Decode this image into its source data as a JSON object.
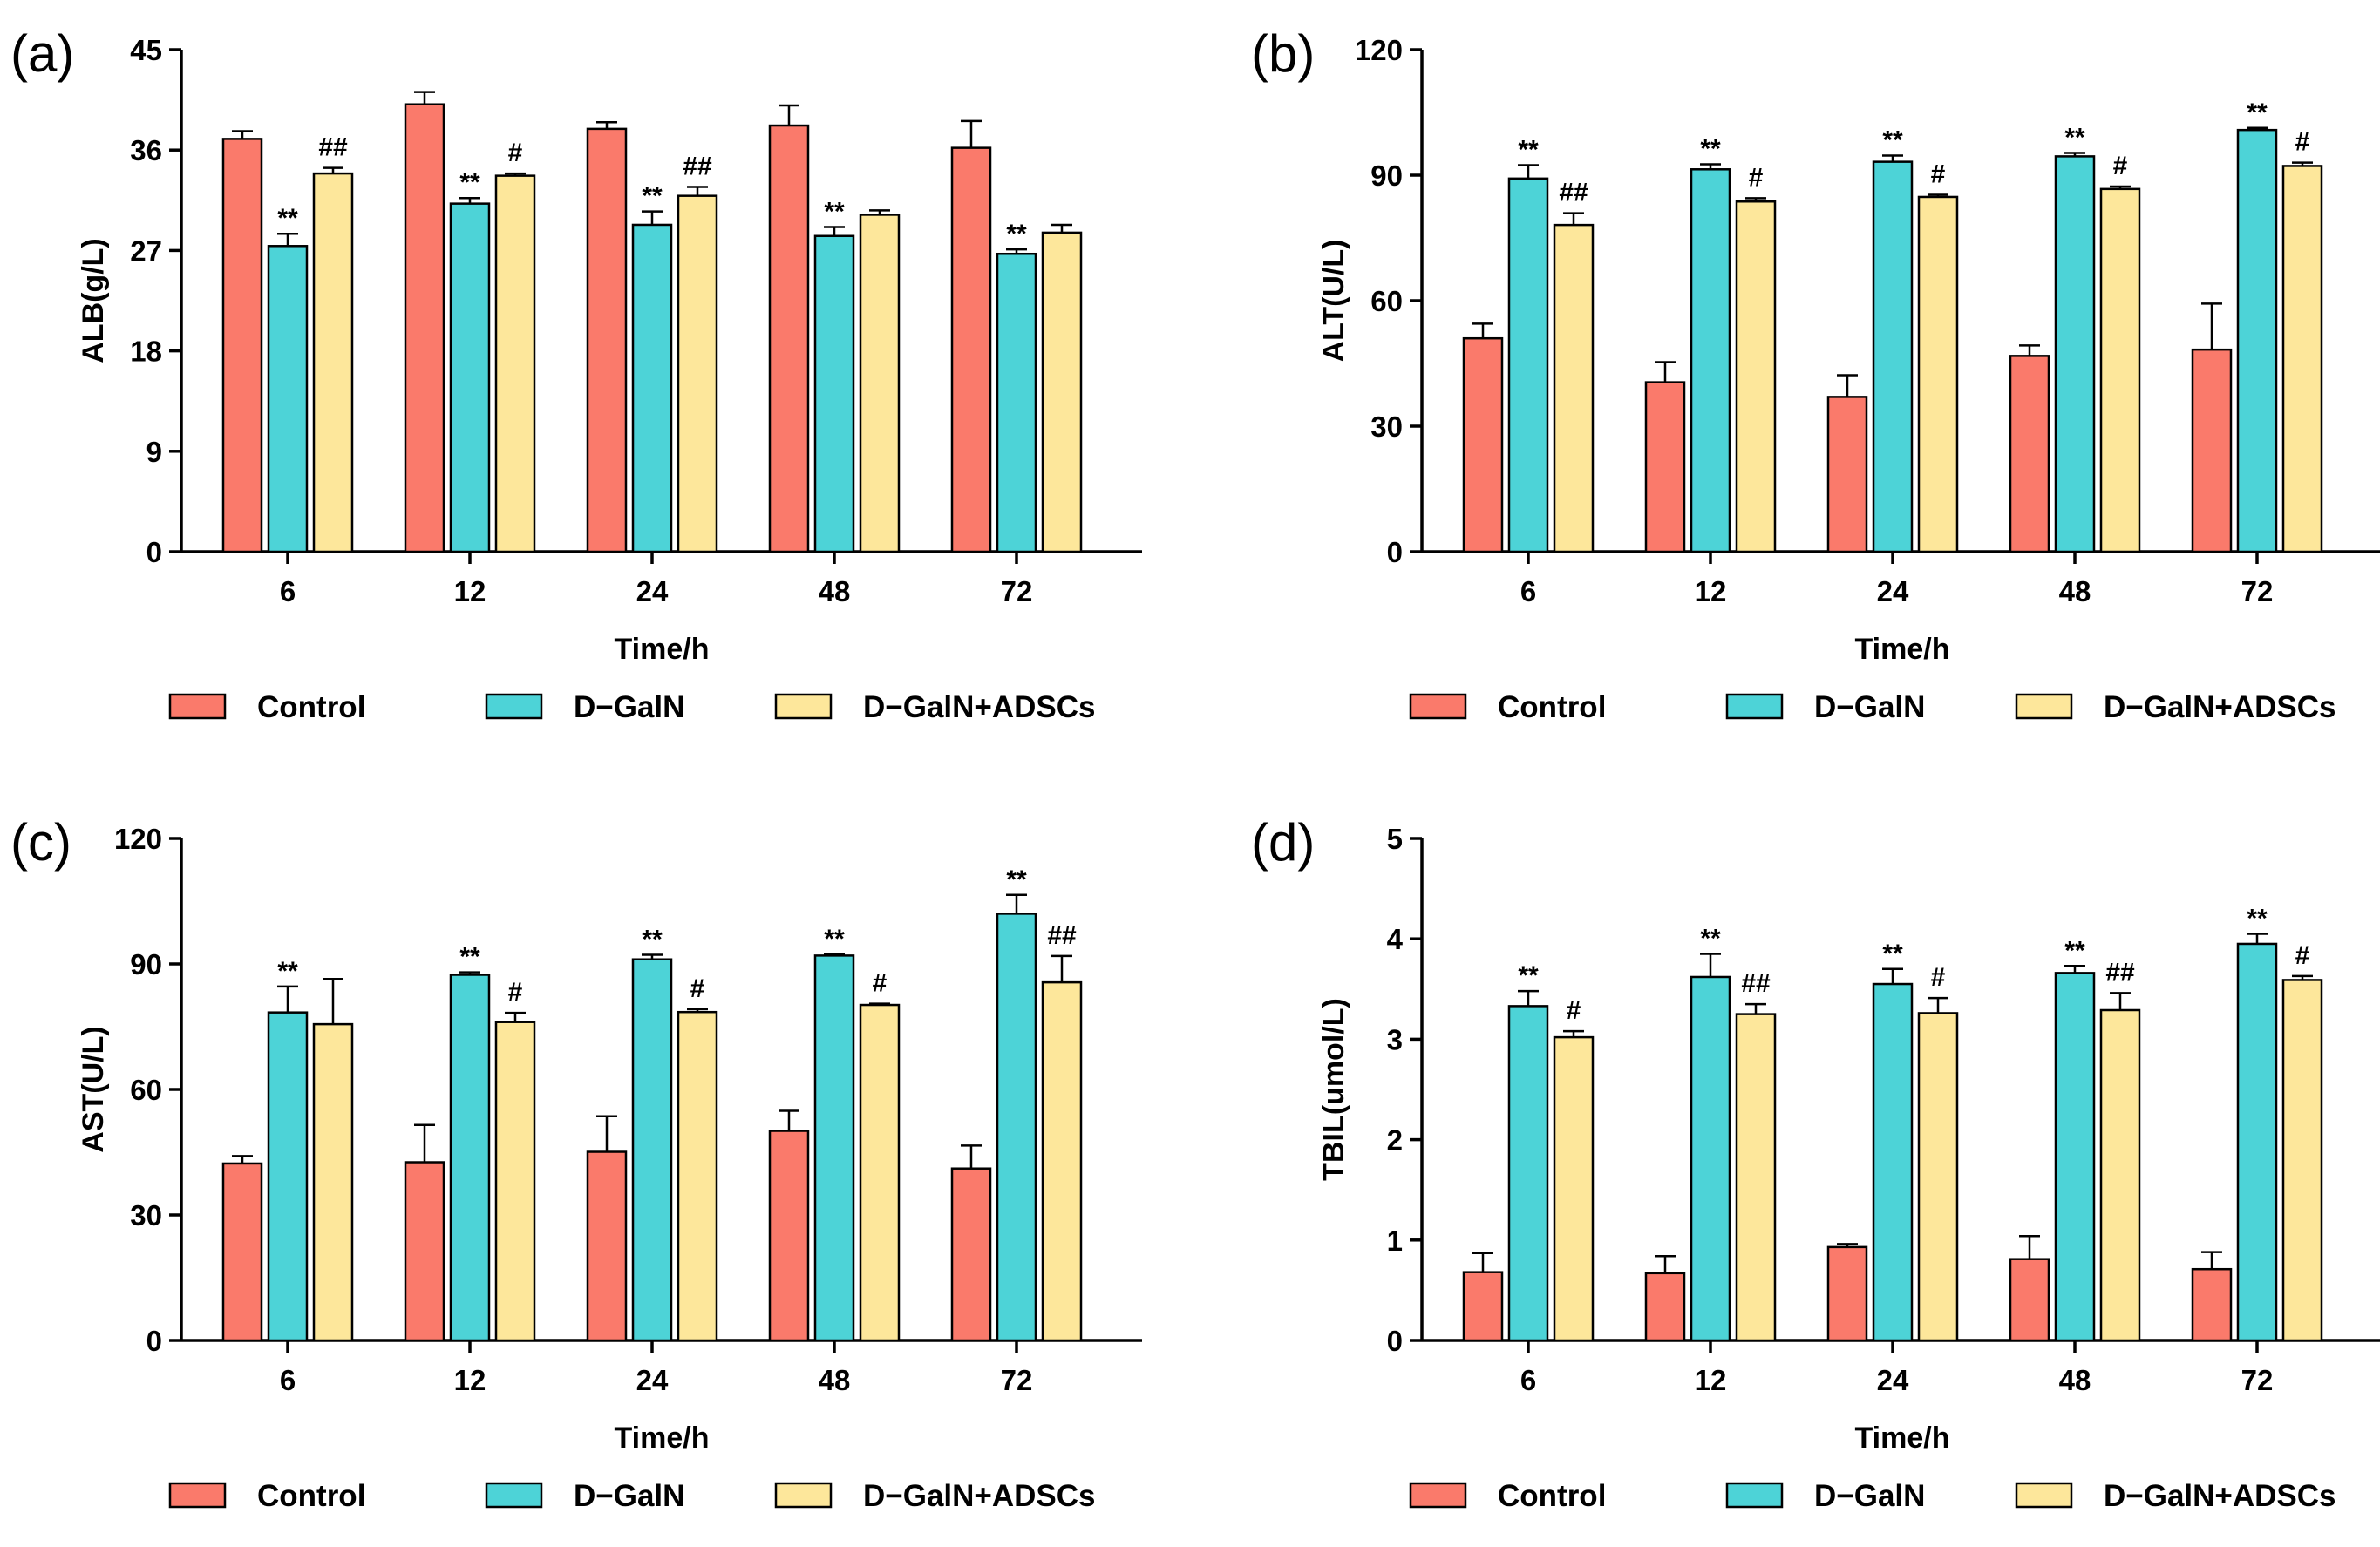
{
  "legend": {
    "entries": [
      {
        "name": "Control",
        "color": "#fa7a6b"
      },
      {
        "name": "D−GalN",
        "color": "#4dd3d7"
      },
      {
        "name": "D−GalN+ADSCs",
        "color": "#fde79b"
      }
    ]
  },
  "chart_data": [
    {
      "type": "bar",
      "panel": "(a)",
      "ylabel": "ALB(g/L)",
      "xlabel": "Time/h",
      "categories": [
        "6",
        "12",
        "24",
        "48",
        "72"
      ],
      "ylim": [
        0,
        45
      ],
      "yticks": [
        "0",
        "9",
        "18",
        "27",
        "36",
        "45"
      ],
      "series": [
        {
          "name": "Control",
          "color": "#fa7a6b",
          "values": [
            37.0,
            40.1,
            37.9,
            38.2,
            36.2
          ],
          "errors": [
            0.7,
            1.1,
            0.6,
            1.8,
            2.4
          ],
          "sig": [
            "",
            "",
            "",
            "",
            ""
          ]
        },
        {
          "name": "D−GalN",
          "color": "#4dd3d7",
          "values": [
            27.4,
            31.2,
            29.3,
            28.3,
            26.7
          ],
          "errors": [
            1.1,
            0.5,
            1.2,
            0.8,
            0.4
          ],
          "sig": [
            "**",
            "**",
            "**",
            "**",
            "**"
          ]
        },
        {
          "name": "D−GalN+ADSCs",
          "color": "#fde79b",
          "values": [
            33.9,
            33.7,
            31.9,
            30.2,
            28.6
          ],
          "errors": [
            0.5,
            0.2,
            0.8,
            0.4,
            0.7
          ],
          "sig": [
            "##",
            "#",
            "##",
            "",
            ""
          ]
        }
      ]
    },
    {
      "type": "bar",
      "panel": "(b)",
      "ylabel": "ALT(U/L)",
      "xlabel": "Time/h",
      "categories": [
        "6",
        "12",
        "24",
        "48",
        "72"
      ],
      "ylim": [
        0,
        120
      ],
      "yticks": [
        "0",
        "30",
        "60",
        "90",
        "120"
      ],
      "series": [
        {
          "name": "Control",
          "color": "#fa7a6b",
          "values": [
            51,
            40.5,
            37,
            46.8,
            48.3
          ],
          "errors": [
            3.5,
            4.8,
            5.2,
            2.5,
            11
          ],
          "sig": [
            "",
            "",
            "",
            "",
            ""
          ]
        },
        {
          "name": "D−GalN",
          "color": "#4dd3d7",
          "values": [
            89.2,
            91.4,
            93.2,
            94.5,
            100.8
          ],
          "errors": [
            3.2,
            1.2,
            1.5,
            0.8,
            0.5
          ],
          "sig": [
            "**",
            "**",
            "**",
            "**",
            "**"
          ]
        },
        {
          "name": "D−GalN+ADSCs",
          "color": "#fde79b",
          "values": [
            78.1,
            83.7,
            84.8,
            86.7,
            92.2
          ],
          "errors": [
            2.8,
            0.8,
            0.5,
            0.6,
            0.8
          ],
          "sig": [
            "##",
            "#",
            "#",
            "#",
            "#"
          ]
        }
      ]
    },
    {
      "type": "bar",
      "panel": "(c)",
      "ylabel": "AST(U/L)",
      "xlabel": "Time/h",
      "categories": [
        "6",
        "12",
        "24",
        "48",
        "72"
      ],
      "ylim": [
        0,
        120
      ],
      "yticks": [
        "0",
        "30",
        "60",
        "90",
        "120"
      ],
      "series": [
        {
          "name": "Control",
          "color": "#fa7a6b",
          "values": [
            42.3,
            42.6,
            45.1,
            50.1,
            41.1
          ],
          "errors": [
            1.8,
            8.9,
            8.5,
            4.8,
            5.5
          ],
          "sig": [
            "",
            "",
            "",
            "",
            ""
          ]
        },
        {
          "name": "D−GalN",
          "color": "#4dd3d7",
          "values": [
            78.4,
            87.4,
            91.1,
            92,
            102
          ],
          "errors": [
            6.2,
            0.6,
            1.1,
            0.3,
            4.5
          ],
          "sig": [
            "**",
            "**",
            "**",
            "**",
            "**"
          ]
        },
        {
          "name": "D−GalN+ADSCs",
          "color": "#fde79b",
          "values": [
            75.6,
            76.1,
            78.5,
            80.2,
            85.6
          ],
          "errors": [
            10.8,
            2.2,
            0.7,
            0.3,
            6.3
          ],
          "sig": [
            "",
            "#",
            "#",
            "#",
            "##"
          ]
        }
      ]
    },
    {
      "type": "bar",
      "panel": "(d)",
      "ylabel": "TBIL(umol/L)",
      "xlabel": "Time/h",
      "categories": [
        "6",
        "12",
        "24",
        "48",
        "72"
      ],
      "ylim": [
        0,
        5
      ],
      "yticks": [
        "0",
        "1",
        "2",
        "3",
        "4",
        "5"
      ],
      "series": [
        {
          "name": "Control",
          "color": "#fa7a6b",
          "values": [
            0.68,
            0.67,
            0.93,
            0.81,
            0.71
          ],
          "errors": [
            0.19,
            0.17,
            0.03,
            0.23,
            0.17
          ],
          "sig": [
            "",
            "",
            "",
            "",
            ""
          ]
        },
        {
          "name": "D−GalN",
          "color": "#4dd3d7",
          "values": [
            3.33,
            3.62,
            3.55,
            3.66,
            3.95
          ],
          "errors": [
            0.15,
            0.23,
            0.15,
            0.07,
            0.1
          ],
          "sig": [
            "**",
            "**",
            "**",
            "**",
            "**"
          ]
        },
        {
          "name": "D−GalN+ADSCs",
          "color": "#fde79b",
          "values": [
            3.02,
            3.25,
            3.26,
            3.29,
            3.59
          ],
          "errors": [
            0.06,
            0.1,
            0.15,
            0.17,
            0.04
          ],
          "sig": [
            "#",
            "##",
            "#",
            "##",
            "#"
          ]
        }
      ]
    }
  ]
}
